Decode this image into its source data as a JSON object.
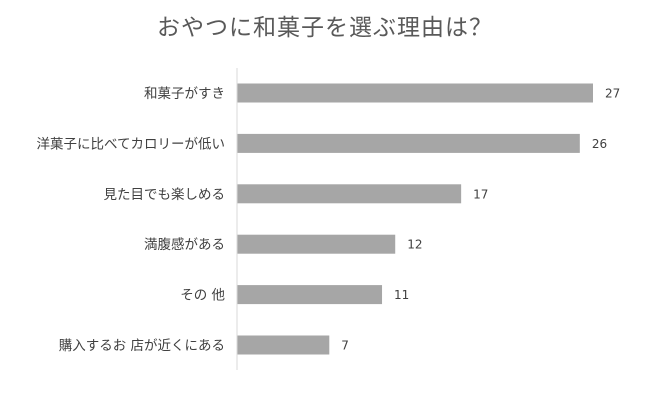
{
  "chart_data": {
    "type": "bar",
    "orientation": "horizontal",
    "title": "おやつに和菓子を選ぶ理由は？",
    "categories": [
      "和菓子がすき",
      "洋菓子に比べてカロリーが低い",
      "見た目でも楽しめる",
      "満腹感がある",
      "その 他",
      "購入するお 店が近くにある"
    ],
    "values": [
      27,
      26,
      17,
      12,
      11,
      7
    ],
    "xlim": [
      0,
      30
    ],
    "grid": false,
    "legend": "none",
    "bar_color": "#a6a6a6",
    "axis_color": "#d9d9d9"
  }
}
